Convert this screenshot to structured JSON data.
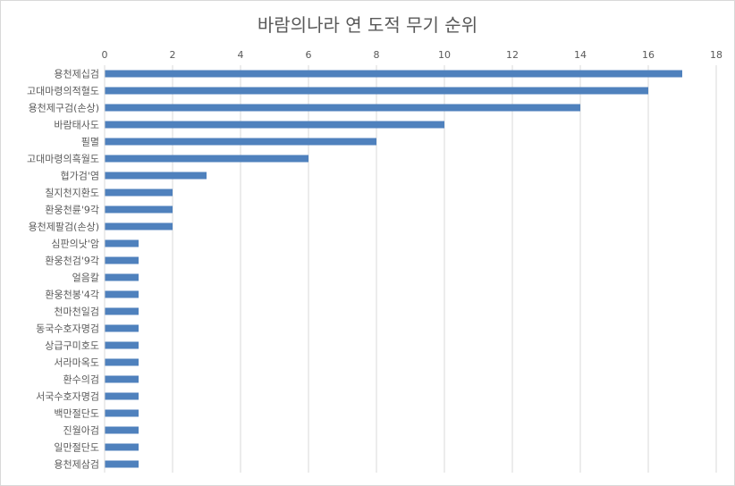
{
  "chart_data": {
    "type": "bar",
    "orientation": "horizontal",
    "title": "바람의나라 연 도적 무기 순위",
    "xlabel": "",
    "ylabel": "",
    "xlim": [
      0,
      18
    ],
    "x_ticks": [
      0,
      2,
      4,
      6,
      8,
      10,
      12,
      14,
      16,
      18
    ],
    "x_axis_position": "top",
    "grid": "vertical",
    "legend": "none",
    "bar_color": "#4f81bd",
    "categories": [
      "용천제십검",
      "고대마령의적혈도",
      "용천제구검(손상)",
      "바람태사도",
      "필멸",
      "고대마령의흑월도",
      "협가검'염",
      "칠지천지환도",
      "환웅천륜'9각",
      "용천제팔검(손상)",
      "심판의낫'암",
      "환웅천검'9각",
      "얼음칼",
      "환웅천봉'4각",
      "천마천일검",
      "동국수호자명검",
      "상급구미호도",
      "서라마옥도",
      "환수의검",
      "서국수호자명검",
      "백만절단도",
      "진월아검",
      "일만절단도",
      "용천제삼검"
    ],
    "values": [
      17,
      16,
      14,
      10,
      8,
      6,
      3,
      2,
      2,
      2,
      1,
      1,
      1,
      1,
      1,
      1,
      1,
      1,
      1,
      1,
      1,
      1,
      1,
      1
    ]
  }
}
